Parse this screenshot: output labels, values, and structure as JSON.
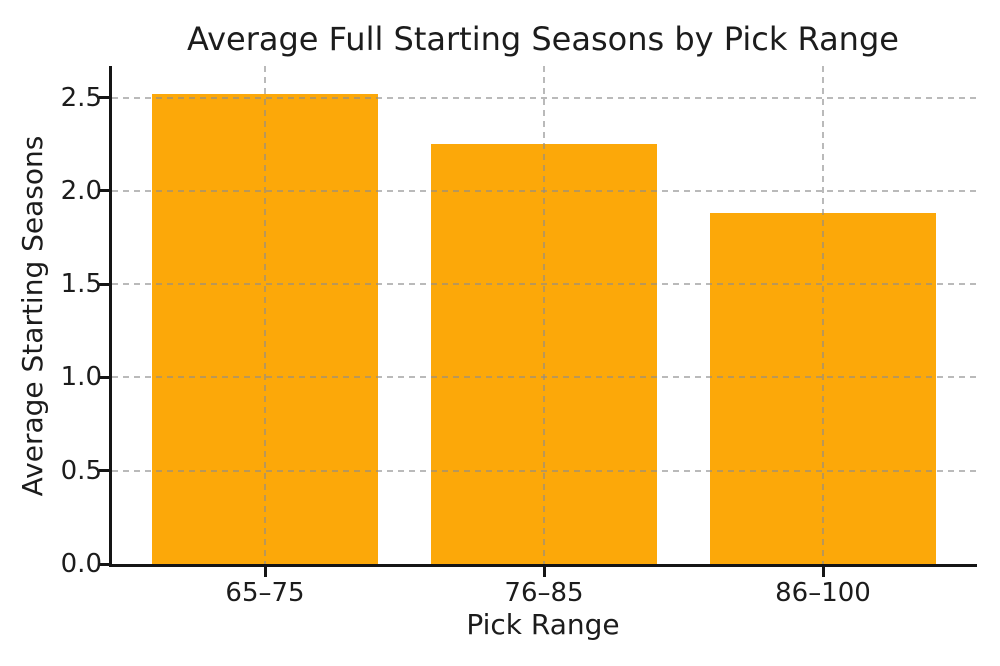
{
  "chart_data": {
    "type": "bar",
    "title": "Average Full Starting Seasons by Pick Range",
    "xlabel": "Pick Range",
    "ylabel": "Average Starting Seasons",
    "categories": [
      "65–75",
      "76–85",
      "86–100"
    ],
    "values": [
      2.52,
      2.25,
      1.88
    ],
    "yticks": [
      0.0,
      0.5,
      1.0,
      1.5,
      2.0,
      2.5
    ],
    "ytick_format_decimals": 1,
    "ylim": [
      0,
      2.67
    ],
    "bar_color": "#fca809",
    "grid": "both, dashed, drawn over bars",
    "legend_position": "none",
    "text_color": "#1c1c1c",
    "spine_color": "#151515",
    "gridline_color": "#b9b9b9",
    "spines": "left and bottom only"
  }
}
